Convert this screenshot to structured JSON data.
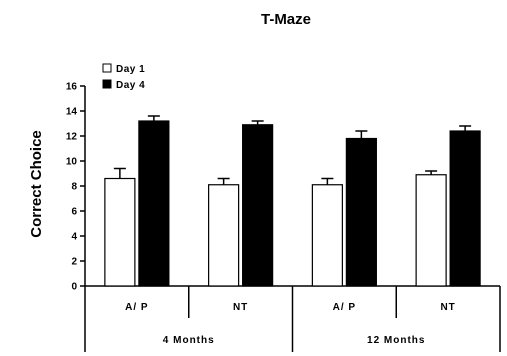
{
  "chart_data": {
    "type": "bar",
    "title": "T-Maze",
    "xlabel": "",
    "ylabel": "Correct Choice",
    "ylim": [
      0,
      16
    ],
    "yticks": [
      0,
      2,
      4,
      6,
      8,
      10,
      12,
      14,
      16
    ],
    "categories": [
      "A/ P",
      "NT",
      "A/ P",
      "NT"
    ],
    "groups": [
      "4 Months",
      "12 Months"
    ],
    "series": [
      {
        "name": "Day 1",
        "color": "#ffffff",
        "values": [
          8.6,
          8.1,
          8.1,
          8.9
        ],
        "errors": [
          0.8,
          0.5,
          0.5,
          0.3
        ]
      },
      {
        "name": "Day 4",
        "color": "#000000",
        "values": [
          13.2,
          12.9,
          11.8,
          12.4
        ],
        "errors": [
          0.4,
          0.3,
          0.6,
          0.4
        ]
      }
    ],
    "legend": "top-left",
    "grid": false
  }
}
